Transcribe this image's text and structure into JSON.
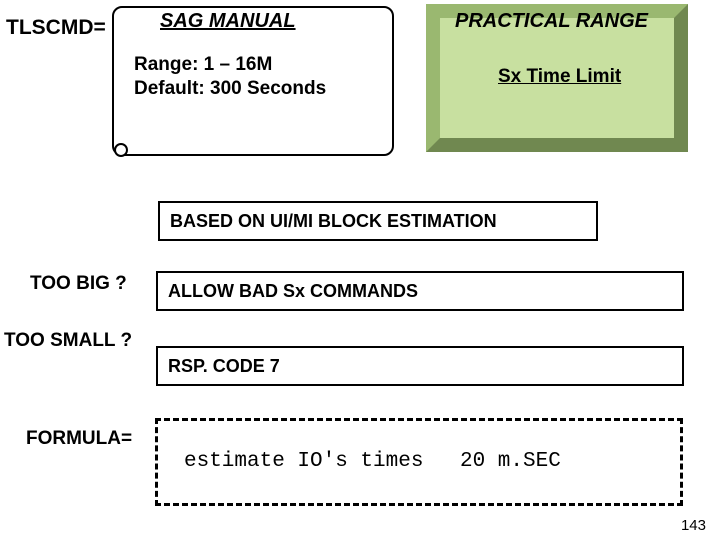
{
  "header": {
    "left_label": "TLSCMD="
  },
  "scroll": {
    "title": "SAG MANUAL",
    "line1": "Range: 1 – 16M",
    "line2": "Default:  300 Seconds"
  },
  "bevel": {
    "title": "PRACTICAL RANGE",
    "subtitle": "Sx Time Limit",
    "fill_color": "#c8e0a0",
    "light_edge": "#9ab870",
    "dark_edge": "#708850"
  },
  "based_box": {
    "text": "BASED ON UI/MI BLOCK ESTIMATION"
  },
  "too_big": {
    "label": "TOO BIG ?",
    "text": "ALLOW BAD Sx COMMANDS"
  },
  "too_small": {
    "label": "TOO SMALL ?",
    "text": "RSP. CODE 7"
  },
  "formula": {
    "label": "FORMULA=",
    "text1": "estimate IO's times",
    "text2": "20 m.SEC"
  },
  "page_number": "143",
  "colors": {
    "background": "#ffffff",
    "text": "#000000",
    "border": "#000000"
  },
  "typography": {
    "title_fontsize": 20,
    "body_fontsize": 19,
    "mono_family": "Courier New"
  }
}
